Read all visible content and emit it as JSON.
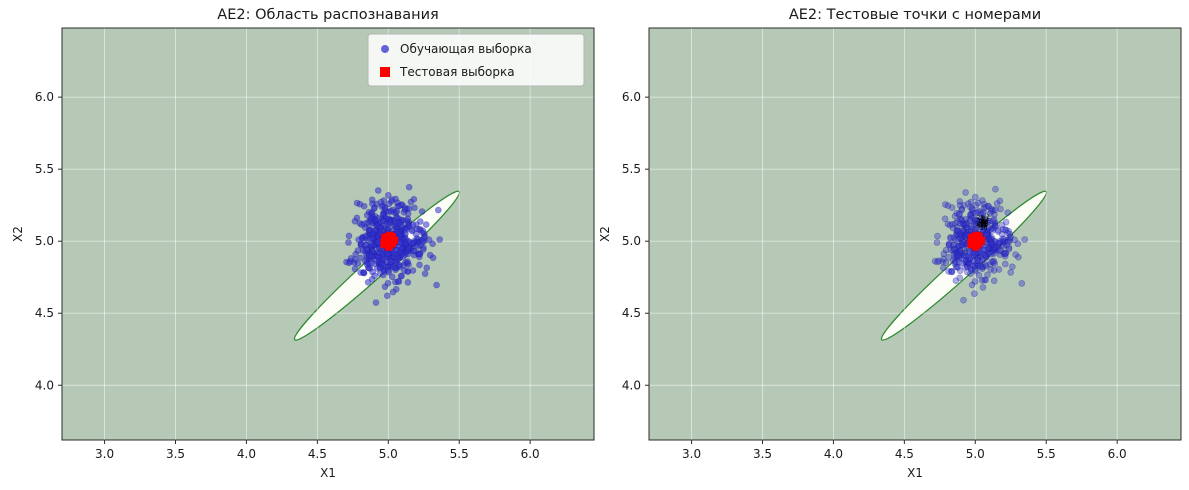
{
  "figure": {
    "background_color": "#ffffff",
    "plot_bg_color": "#b6c8b6",
    "grid_color": "#ffffff"
  },
  "chart_data": [
    {
      "type": "scatter",
      "title": "AE2: Область распознавания",
      "xlabel": "X1",
      "ylabel": "X2",
      "xlim": [
        2.7,
        6.45
      ],
      "ylim": [
        3.62,
        6.48
      ],
      "xticks": [
        3.0,
        3.5,
        4.0,
        4.5,
        5.0,
        5.5,
        6.0
      ],
      "yticks": [
        4.0,
        4.5,
        5.0,
        5.5,
        6.0
      ],
      "grid": true,
      "plot_bg_color": "#b6c8b6",
      "recognition_region": {
        "shape": "rotated_ellipse",
        "center": [
          4.92,
          4.83
        ],
        "semi_major": 0.78,
        "semi_minor": 0.07,
        "angle_deg": 42,
        "fill_color": "#fdfdf7",
        "edge_color": "#2e8b2e"
      },
      "series": [
        {
          "name": "Обучающая выборка",
          "marker": "circle",
          "color": "#3232cd",
          "alpha": 0.55,
          "marker_px": 3,
          "cluster": {
            "center": [
              5.0,
              5.0
            ],
            "std": 0.13,
            "n": 500,
            "seed": 42
          }
        },
        {
          "name": "Тестовая выборка",
          "marker": "square",
          "color": "#ff0000",
          "alpha": 0.95,
          "marker_px": 7,
          "cluster": {
            "center": [
              5.0,
              5.005
            ],
            "std": 0.015,
            "n": 100,
            "seed": 7
          }
        }
      ],
      "legend": {
        "visible": true,
        "position": "upper right",
        "entries": [
          {
            "label": "Обучающая выборка",
            "marker": "circle",
            "color": "#3232cd"
          },
          {
            "label": "Тестовая выборка",
            "marker": "square",
            "color": "#ff0000"
          }
        ]
      }
    },
    {
      "type": "scatter",
      "title": "AE2: Тестовые точки с номерами",
      "xlabel": "X1",
      "ylabel": "X2",
      "xlim": [
        2.7,
        6.45
      ],
      "ylim": [
        3.62,
        6.48
      ],
      "xticks": [
        3.0,
        3.5,
        4.0,
        4.5,
        5.0,
        5.5,
        6.0
      ],
      "yticks": [
        4.0,
        4.5,
        5.0,
        5.5,
        6.0
      ],
      "grid": true,
      "plot_bg_color": "#b6c8b6",
      "recognition_region": {
        "shape": "rotated_ellipse",
        "center": [
          4.92,
          4.83
        ],
        "semi_major": 0.78,
        "semi_minor": 0.07,
        "angle_deg": 42,
        "fill_color": "#fdfdf7",
        "edge_color": "#2e8b2e"
      },
      "series": [
        {
          "name": "Обучающая выборка",
          "marker": "circle",
          "color": "#3232cd",
          "alpha": 0.4,
          "marker_px": 3,
          "cluster": {
            "center": [
              5.0,
              5.0
            ],
            "std": 0.125,
            "n": 450,
            "seed": 42
          }
        },
        {
          "name": "Тестовая выборка",
          "marker": "square",
          "color": "#ff0000",
          "alpha": 0.95,
          "marker_px": 7,
          "cluster": {
            "center": [
              5.0,
              5.005
            ],
            "std": 0.015,
            "n": 100,
            "seed": 7
          }
        }
      ],
      "legend": {
        "visible": false,
        "entries": []
      },
      "annotations": {
        "type": "point_numbers",
        "description": "black index numbers of test points clustered near the test sample",
        "color": "#000000",
        "center": [
          5.06,
          5.11
        ],
        "std": 0.02,
        "count": 25,
        "start_index": 1,
        "font_px": 5.5,
        "seed": 99
      }
    }
  ]
}
